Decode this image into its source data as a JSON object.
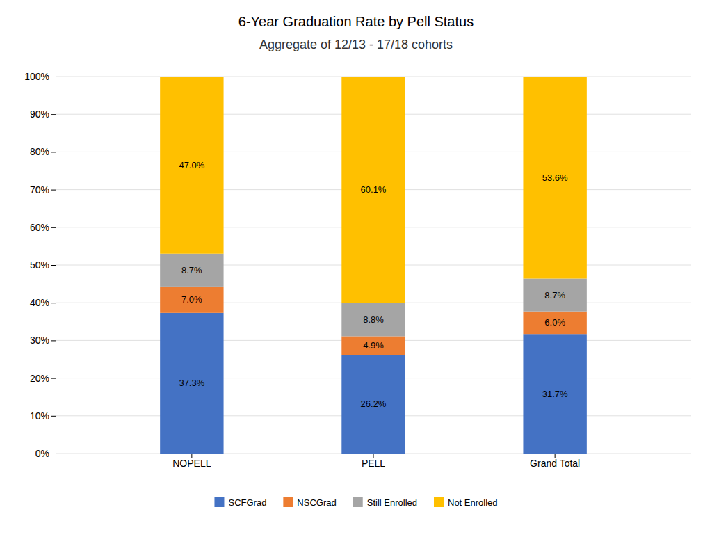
{
  "chart_data": {
    "type": "bar",
    "title": "6-Year Graduation Rate by Pell Status",
    "subtitle": "Aggregate of 12/13 - 17/18 cohorts",
    "categories": [
      "NOPELL",
      "PELL",
      "Grand Total"
    ],
    "series": [
      {
        "name": "SCFGrad",
        "color": "#4472C4",
        "values": [
          37.3,
          26.2,
          31.7
        ],
        "value_labels": [
          "37.3%",
          "26.2%",
          "31.7%"
        ]
      },
      {
        "name": "NSCGrad",
        "color": "#ED7D31",
        "values": [
          7.0,
          4.9,
          6.0
        ],
        "value_labels": [
          "7.0%",
          "4.9%",
          "6.0%"
        ]
      },
      {
        "name": "Still Enrolled",
        "color": "#A5A5A5",
        "values": [
          8.7,
          8.8,
          8.7
        ],
        "value_labels": [
          "8.7%",
          "8.8%",
          "8.7%"
        ]
      },
      {
        "name": "Not Enrolled",
        "color": "#FFC000",
        "values": [
          47.0,
          60.1,
          53.6
        ],
        "value_labels": [
          "47.0%",
          "60.1%",
          "53.6%"
        ]
      }
    ],
    "ylim": [
      0,
      100
    ],
    "yticks": [
      {
        "value": 0,
        "label": "0%"
      },
      {
        "value": 10,
        "label": "10%"
      },
      {
        "value": 20,
        "label": "20%"
      },
      {
        "value": 30,
        "label": "30%"
      },
      {
        "value": 40,
        "label": "40%"
      },
      {
        "value": 50,
        "label": "50%"
      },
      {
        "value": 60,
        "label": "60%"
      },
      {
        "value": 70,
        "label": "70%"
      },
      {
        "value": 80,
        "label": "80%"
      },
      {
        "value": 90,
        "label": "90%"
      },
      {
        "value": 100,
        "label": "100%"
      }
    ],
    "stacked": true,
    "data_labels": true,
    "grid": true,
    "legend": "bottom"
  }
}
